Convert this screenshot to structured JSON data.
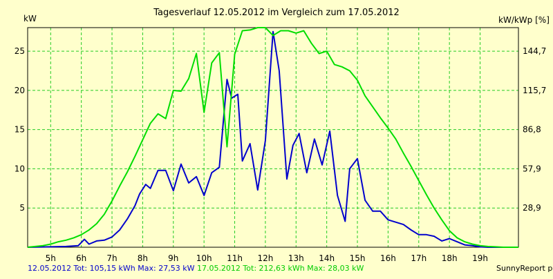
{
  "title": "Tagesverlauf 12.05.2012 im Vergleich zum 17.05.2012",
  "unit_left": "kW",
  "unit_right": "kW/kWp [%]",
  "footer": {
    "series1_text": "12.05.2012 Tot: 105,15 kWh Max: 27,53 kW",
    "series2_text": " 17.05.2012 Tot: 212,63 kWh Max: 28,03 kW",
    "credit": "SunnyReport pinxit"
  },
  "colors": {
    "background": "#ffffcc",
    "grid": "#22cc22",
    "series1": "#0000cc",
    "series2": "#00dd00"
  },
  "chart_data": {
    "type": "line",
    "title": "Tagesverlauf 12.05.2012 im Vergleich zum 17.05.2012",
    "xlabel": "",
    "ylabel": "kW",
    "y2label": "kW/kWp [%]",
    "xlim": [
      4.25,
      20.25
    ],
    "ylim": [
      0,
      28
    ],
    "y2_ticks": [
      "28,9",
      "57,9",
      "86,8",
      "115,7",
      "144,7"
    ],
    "x_ticks": [
      "5h",
      "6h",
      "7h",
      "8h",
      "9h",
      "10h",
      "11h",
      "12h",
      "13h",
      "14h",
      "15h",
      "16h",
      "17h",
      "18h",
      "19h"
    ],
    "y_ticks": [
      5,
      10,
      15,
      20,
      25
    ],
    "grid": true,
    "series": [
      {
        "name": "12.05.2012",
        "color": "#0000cc",
        "x": [
          4.25,
          5.0,
          5.5,
          5.9,
          6.1,
          6.25,
          6.5,
          6.75,
          7.0,
          7.25,
          7.5,
          7.75,
          7.9,
          8.1,
          8.25,
          8.5,
          8.75,
          9.0,
          9.25,
          9.5,
          9.75,
          10.0,
          10.25,
          10.5,
          10.75,
          10.9,
          11.1,
          11.25,
          11.5,
          11.75,
          12.0,
          12.25,
          12.45,
          12.7,
          12.9,
          13.1,
          13.35,
          13.6,
          13.85,
          14.1,
          14.35,
          14.6,
          14.75,
          15.0,
          15.25,
          15.5,
          15.75,
          16.0,
          16.25,
          16.5,
          16.75,
          17.0,
          17.25,
          17.5,
          17.75,
          18.0,
          18.25,
          18.5,
          18.75,
          19.0,
          19.25,
          19.5,
          19.75,
          20.25
        ],
        "values": [
          0.0,
          0.05,
          0.1,
          0.2,
          1.0,
          0.4,
          0.8,
          0.9,
          1.3,
          2.2,
          3.6,
          5.3,
          6.8,
          8.0,
          7.5,
          9.8,
          9.8,
          7.2,
          10.6,
          8.2,
          9.0,
          6.6,
          9.5,
          10.2,
          21.4,
          19.0,
          19.5,
          11.0,
          13.2,
          7.3,
          13.6,
          27.5,
          22.5,
          8.7,
          13.0,
          14.5,
          9.5,
          13.8,
          10.5,
          14.8,
          6.6,
          3.3,
          10.0,
          11.3,
          6.0,
          4.6,
          4.6,
          3.5,
          3.2,
          2.9,
          2.2,
          1.6,
          1.6,
          1.4,
          0.8,
          1.1,
          0.7,
          0.3,
          0.2,
          0.05,
          0.0,
          0.0,
          0.0,
          0.0
        ]
      },
      {
        "name": "17.05.2012",
        "color": "#00dd00",
        "x": [
          4.25,
          4.75,
          5.0,
          5.25,
          5.5,
          5.75,
          6.0,
          6.25,
          6.5,
          6.75,
          7.0,
          7.25,
          7.5,
          7.75,
          8.0,
          8.25,
          8.5,
          8.75,
          9.0,
          9.25,
          9.5,
          9.75,
          10.0,
          10.25,
          10.5,
          10.75,
          11.0,
          11.25,
          11.5,
          11.75,
          12.0,
          12.25,
          12.5,
          12.75,
          13.0,
          13.25,
          13.5,
          13.75,
          14.0,
          14.25,
          14.5,
          14.75,
          15.0,
          15.25,
          15.5,
          15.75,
          16.0,
          16.25,
          16.5,
          16.75,
          17.0,
          17.25,
          17.5,
          17.75,
          18.0,
          18.25,
          18.5,
          18.75,
          19.0,
          19.25,
          19.5,
          19.75,
          20.25
        ],
        "values": [
          0.0,
          0.2,
          0.4,
          0.7,
          0.9,
          1.2,
          1.6,
          2.2,
          3.0,
          4.2,
          5.9,
          7.8,
          9.6,
          11.6,
          13.7,
          15.8,
          17.0,
          16.4,
          20.0,
          19.9,
          21.5,
          24.7,
          17.2,
          23.5,
          24.8,
          12.8,
          24.6,
          27.6,
          27.7,
          28.0,
          28.0,
          27.0,
          27.6,
          27.6,
          27.3,
          27.6,
          26.0,
          24.7,
          25.0,
          23.3,
          23.0,
          22.5,
          21.3,
          19.3,
          17.9,
          16.5,
          15.2,
          13.8,
          12.0,
          10.3,
          8.5,
          6.7,
          5.0,
          3.5,
          2.1,
          1.2,
          0.7,
          0.4,
          0.2,
          0.1,
          0.05,
          0.0,
          0.0
        ]
      }
    ]
  }
}
